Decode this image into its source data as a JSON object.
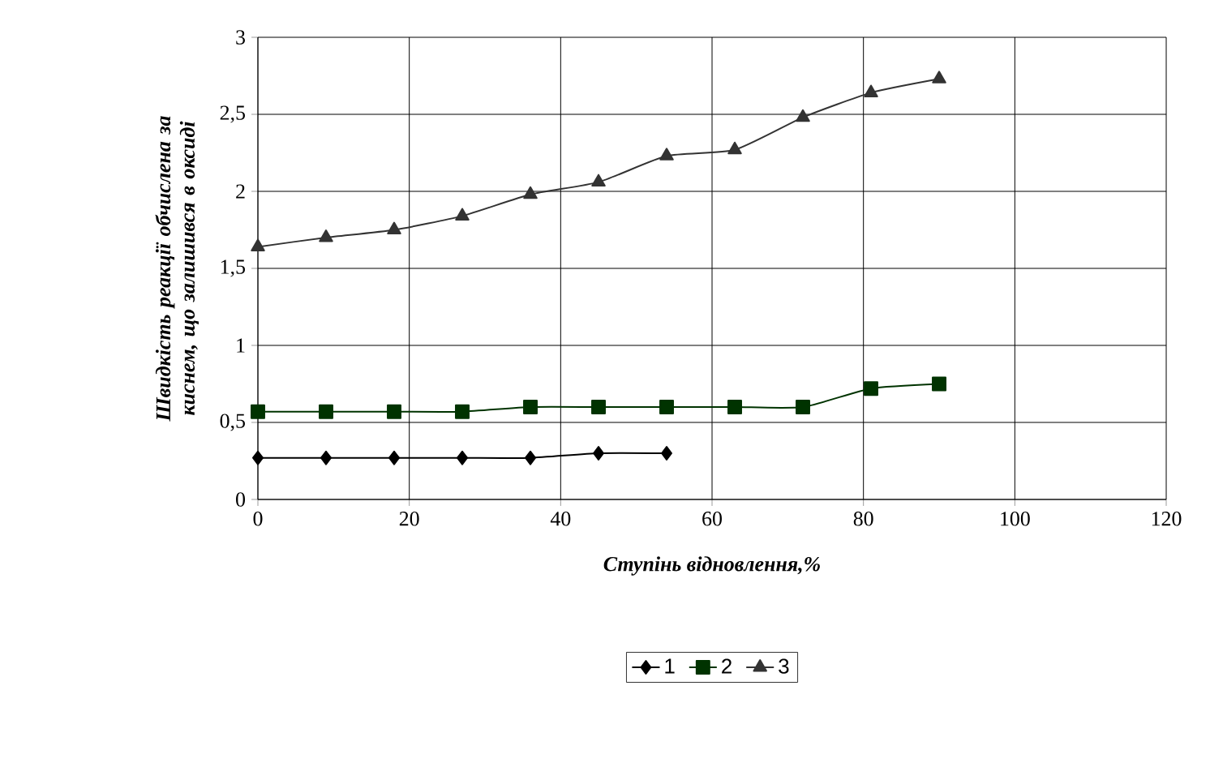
{
  "chart_data": {
    "type": "line",
    "xlabel": "Ступінь відновлення,%",
    "ylabel": "Швидкість реакції обчислена за киснем, що залишився в оксиді",
    "series": [
      {
        "name": "1",
        "color": "#000000",
        "marker": "diamond",
        "x": [
          0,
          9,
          18,
          27,
          36,
          45,
          54
        ],
        "values": [
          0.27,
          0.27,
          0.27,
          0.27,
          0.27,
          0.3,
          0.3
        ]
      },
      {
        "name": "2",
        "color": "#003300",
        "marker": "square",
        "x": [
          0,
          9,
          18,
          27,
          36,
          45,
          54,
          63,
          72,
          81,
          90
        ],
        "values": [
          0.57,
          0.57,
          0.57,
          0.57,
          0.6,
          0.6,
          0.6,
          0.6,
          0.6,
          0.72,
          0.75
        ]
      },
      {
        "name": "3",
        "color": "#333333",
        "marker": "triangle",
        "x": [
          0,
          9,
          18,
          27,
          36,
          45,
          54,
          63,
          72,
          81,
          90
        ],
        "values": [
          1.64,
          1.7,
          1.75,
          1.84,
          1.98,
          2.06,
          2.23,
          2.27,
          2.48,
          2.64,
          2.73
        ]
      }
    ],
    "xlim": [
      0,
      120
    ],
    "xticks": [
      0,
      20,
      40,
      60,
      80,
      100,
      120
    ],
    "ylim": [
      0,
      3
    ],
    "yticks": [
      0,
      {
        "value": 0.5,
        "label": "0,5"
      },
      1,
      {
        "value": 1.5,
        "label": "1,5"
      },
      2,
      {
        "value": 2.5,
        "label": "2,5"
      },
      3
    ],
    "grid": true,
    "legend": "bottom",
    "line_style": "solid"
  }
}
